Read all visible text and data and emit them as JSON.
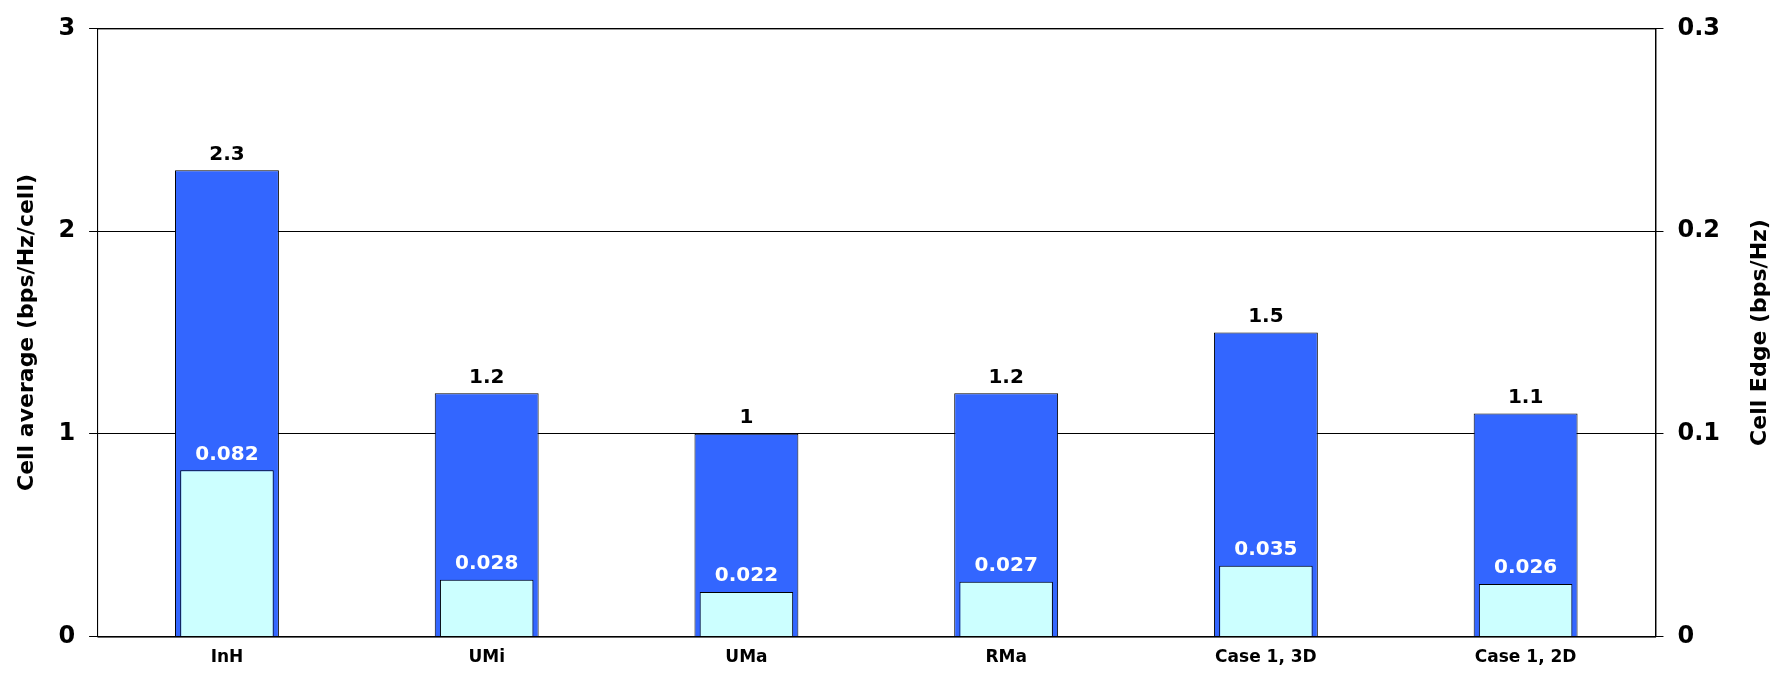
{
  "chart_data": {
    "type": "bar",
    "ylabel": "Cell average (bps/Hz/cell)",
    "y2label": "Cell Edge (bps/Hz)",
    "categories": [
      "InH",
      "UMi",
      "UMa",
      "RMa",
      "Case 1, 3D",
      "Case 1, 2D"
    ],
    "series": [
      {
        "color": "#3366ff",
        "values": [
          2.3,
          1.2,
          1,
          1.2,
          1.5,
          1.1
        ]
      },
      {
        "color": "#ccffff",
        "axis": "y2",
        "values": [
          0.082,
          0.028,
          0.022,
          0.027,
          0.035,
          0.026
        ]
      }
    ],
    "ylim": [
      0,
      3
    ],
    "yticks": [
      0,
      1,
      2,
      3
    ],
    "y2lim": [
      0,
      0.3
    ],
    "y2ticks": [
      0,
      0.1,
      0.2,
      0.3
    ],
    "grid": "y",
    "legend": false,
    "data_labels": true
  }
}
